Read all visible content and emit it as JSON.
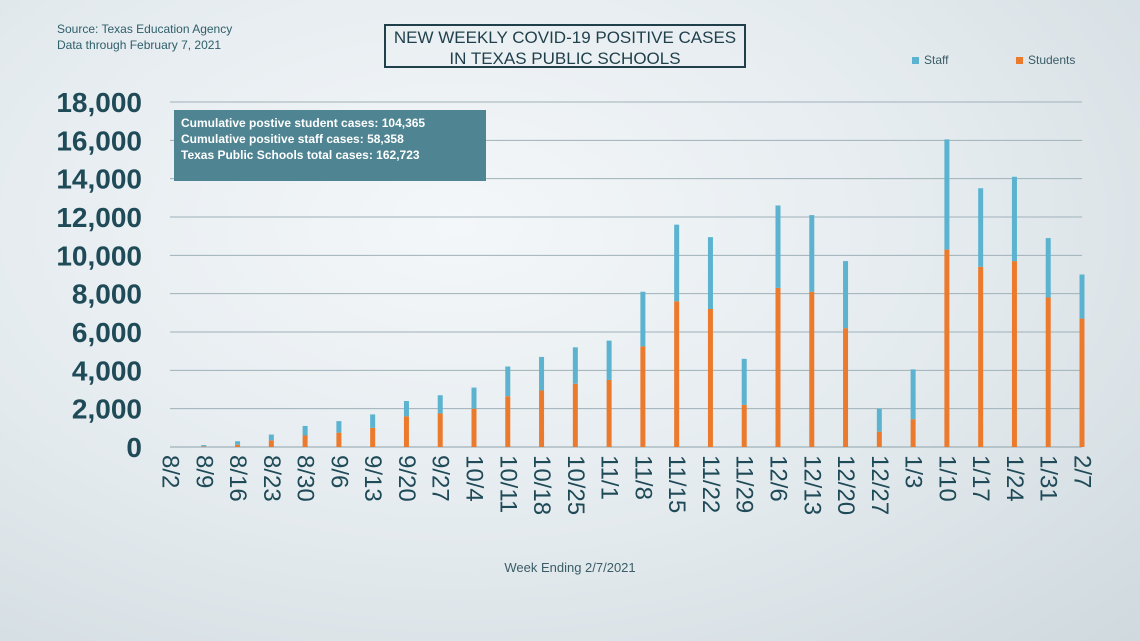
{
  "source": {
    "line1": "Source: Texas Education Agency",
    "line2": "Data through February 7, 2021"
  },
  "title": {
    "line1": "NEW WEEKLY COVID-19 POSITIVE CASES",
    "line2": "IN TEXAS PUBLIC SCHOOLS"
  },
  "info": {
    "line1": "Cumulative postive student cases: 104,365",
    "line2": "Cumulative positive staff cases: 58,358",
    "line3": "Texas Public Schools total cases: 162,723"
  },
  "colors": {
    "staff": "#5bb3d0",
    "students": "#ec7a2c",
    "axis_text": "#1f4a57",
    "grid": "#9fb1b8"
  },
  "chart_data": {
    "type": "bar",
    "stacked": true,
    "categories": [
      "8/2",
      "8/9",
      "8/16",
      "8/23",
      "8/30",
      "9/6",
      "9/13",
      "9/20",
      "9/27",
      "10/4",
      "10/11",
      "10/18",
      "10/25",
      "11/1",
      "11/8",
      "11/15",
      "11/22",
      "11/29",
      "12/6",
      "12/13",
      "12/20",
      "12/27",
      "1/3",
      "1/10",
      "1/17",
      "1/24",
      "1/31",
      "2/7"
    ],
    "series": [
      {
        "name": "Students",
        "values": [
          0,
          30,
          120,
          350,
          600,
          750,
          1000,
          1600,
          1750,
          2000,
          2650,
          2950,
          3300,
          3500,
          5250,
          7600,
          7200,
          2200,
          8300,
          8100,
          6200,
          800,
          1450,
          10300,
          9400,
          9700,
          7800,
          6700
        ]
      },
      {
        "name": "Staff",
        "values": [
          0,
          70,
          180,
          300,
          500,
          600,
          700,
          800,
          950,
          1100,
          1550,
          1750,
          1900,
          2050,
          2850,
          4000,
          3750,
          2400,
          4300,
          4000,
          3500,
          1200,
          2600,
          5750,
          4100,
          4400,
          3100,
          2300
        ]
      }
    ],
    "xlabel": "Week Ending 2/7/2021",
    "ylim": [
      0,
      18000
    ],
    "yticks": [
      0,
      2000,
      4000,
      6000,
      8000,
      10000,
      12000,
      14000,
      16000,
      18000
    ],
    "ytick_labels": [
      "0",
      "2,000",
      "4,000",
      "6,000",
      "8,000",
      "10,000",
      "12,000",
      "14,000",
      "16,000",
      "18,000"
    ],
    "grid": true,
    "legend_position": "top-right"
  }
}
